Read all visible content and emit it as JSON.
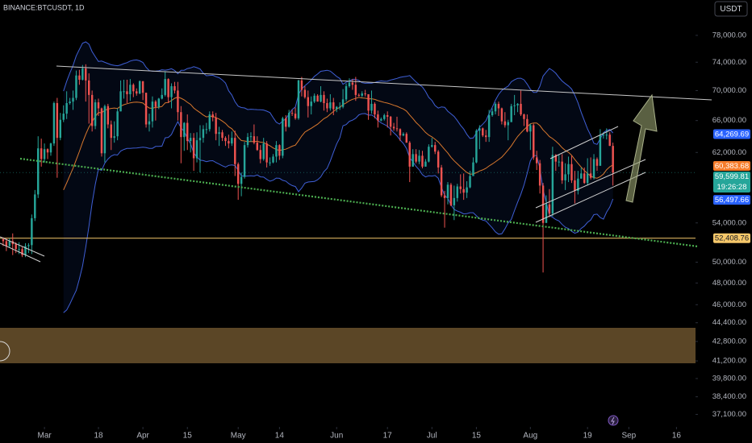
{
  "chart_data": {
    "type": "candlestick",
    "title": "BINANCE:BTCUSDT, 1D",
    "currency_button": "USDT",
    "log_scale": true,
    "grid": false,
    "up_color": "#26a69a",
    "down_color": "#ef5350",
    "ylim": [
      36200,
      83600
    ],
    "xlim": [
      -1,
      218
    ],
    "yticks": [
      {
        "value": 78000,
        "label": "78,000.00"
      },
      {
        "value": 74000,
        "label": "74,000.00"
      },
      {
        "value": 70000,
        "label": "70,000.00"
      },
      {
        "value": 66000,
        "label": "66,000.00"
      },
      {
        "value": 62000,
        "label": "62,000.00"
      },
      {
        "value": 54000,
        "label": "54,000.00"
      },
      {
        "value": 50000,
        "label": "50,000.00"
      },
      {
        "value": 48000,
        "label": "48,000.00"
      },
      {
        "value": 46000,
        "label": "46,000.00"
      },
      {
        "value": 44400,
        "label": "44,400.00"
      },
      {
        "value": 42800,
        "label": "42,800.00"
      },
      {
        "value": 41200,
        "label": "41,200.00"
      },
      {
        "value": 39800,
        "label": "39,800.00"
      },
      {
        "value": 38400,
        "label": "38,400.00"
      },
      {
        "value": 37100,
        "label": "37,100.00"
      }
    ],
    "xticks": [
      {
        "value": 13,
        "label": "Mar"
      },
      {
        "value": 30,
        "label": "18"
      },
      {
        "value": 44,
        "label": "Apr"
      },
      {
        "value": 58,
        "label": "15"
      },
      {
        "value": 74,
        "label": "May"
      },
      {
        "value": 87,
        "label": "14"
      },
      {
        "value": 105,
        "label": "Jun"
      },
      {
        "value": 121,
        "label": "17"
      },
      {
        "value": 135,
        "label": "Jul"
      },
      {
        "value": 149,
        "label": "15"
      },
      {
        "value": 166,
        "label": "Aug"
      },
      {
        "value": 184,
        "label": "19"
      },
      {
        "value": 197,
        "label": "Sep"
      },
      {
        "value": 212,
        "label": "16"
      }
    ],
    "price_labels": [
      {
        "value": 64269.69,
        "label": "64,269.69",
        "color": "#2962ff"
      },
      {
        "value": 60383.68,
        "label": "60,383.68",
        "color": "#f57c2a"
      },
      {
        "value": 59599.81,
        "label": "59,599.81",
        "color": "#26a69a",
        "countdown": "19:26:28"
      },
      {
        "value": 56497.66,
        "label": "56,497.66",
        "color": "#2962ff"
      },
      {
        "value": 52408.76,
        "label": "52,408.76",
        "color": "#f6c86a"
      }
    ],
    "open": [
      52300,
      52100,
      51600,
      52100,
      51800,
      51300,
      51300,
      50700,
      51600,
      51700,
      54500,
      57100,
      62500,
      61200,
      62400,
      62000,
      63100,
      68300,
      63800,
      66100,
      66900,
      68300,
      68500,
      69000,
      72100,
      71500,
      73100,
      71400,
      69400,
      65300,
      68400,
      67600,
      61900,
      67900,
      65500,
      63800,
      64000,
      67200,
      69900,
      69900,
      69500,
      70800,
      69900,
      69600,
      71300,
      69700,
      65500,
      65900,
      68500,
      67800,
      68900,
      69400,
      71600,
      69100,
      70600,
      70000,
      67100,
      63900,
      65700,
      63400,
      63800,
      61300,
      63500,
      63800,
      64900,
      64900,
      66800,
      66400,
      64300,
      64500,
      63800,
      63400,
      63100,
      63800,
      60600,
      58300,
      59100,
      62900,
      63900,
      64000,
      63200,
      62300,
      61200,
      63100,
      60800,
      60800,
      61500,
      62900,
      61600,
      66300,
      65200,
      67000,
      66900,
      66300,
      71400,
      70100,
      69100,
      67900,
      68500,
      69300,
      68500,
      69400,
      68300,
      67600,
      68400,
      67500,
      67800,
      67800,
      68800,
      70600,
      71100,
      70800,
      69400,
      69300,
      69600,
      69500,
      67300,
      68200,
      66800,
      66000,
      66200,
      66700,
      66500,
      65200,
      65000,
      64900,
      64100,
      64300,
      63200,
      60300,
      61800,
      60900,
      61600,
      60300,
      60900,
      62700,
      62900,
      62100,
      60200,
      57000,
      56700,
      58200,
      55900,
      56700,
      58000,
      57700,
      57300,
      57900,
      59200,
      60800,
      64700,
      65000,
      64100,
      63900,
      66700,
      67200,
      68200,
      67600,
      65900,
      65400,
      65800,
      67900,
      68000,
      68200,
      66800,
      66200,
      64600,
      65400,
      61400,
      60700,
      58100,
      54000,
      56000,
      55000,
      61700,
      60900,
      60900,
      58700,
      59400,
      60600,
      58700,
      57500,
      58900,
      59500,
      58400,
      59500,
      59000,
      61200,
      60400,
      64100,
      64200,
      64200,
      62800
    ],
    "high": [
      52500,
      52400,
      52400,
      52900,
      52000,
      52000,
      51500,
      51900,
      51900,
      54900,
      57600,
      64000,
      63700,
      63100,
      62500,
      63200,
      68500,
      69000,
      67000,
      68000,
      69900,
      69000,
      70000,
      72800,
      72900,
      73600,
      73700,
      72400,
      70000,
      68800,
      68900,
      67700,
      68100,
      68200,
      66000,
      65900,
      67600,
      71400,
      71500,
      71500,
      71600,
      71000,
      70300,
      71400,
      71300,
      69700,
      66900,
      69200,
      68700,
      69000,
      70300,
      72700,
      71700,
      71000,
      71200,
      71200,
      67900,
      65800,
      66800,
      64400,
      64400,
      64500,
      65400,
      65400,
      65700,
      67200,
      67200,
      67000,
      65200,
      64800,
      64000,
      64200,
      64600,
      64700,
      60800,
      59600,
      63300,
      64400,
      64500,
      65500,
      64000,
      62900,
      63800,
      63400,
      61400,
      61800,
      63400,
      63000,
      66500,
      66700,
      67400,
      67400,
      67700,
      71500,
      71900,
      70600,
      70000,
      69200,
      69600,
      69500,
      70600,
      69900,
      68900,
      69500,
      69000,
      67900,
      68400,
      70200,
      71000,
      71700,
      71600,
      71900,
      69600,
      69900,
      70100,
      69500,
      70000,
      68400,
      67300,
      66400,
      66900,
      67200,
      66600,
      65700,
      66500,
      65000,
      64500,
      64500,
      63400,
      62400,
      62400,
      62300,
      62200,
      61200,
      63000,
      63800,
      63300,
      62300,
      60500,
      57500,
      58500,
      58400,
      58100,
      58300,
      59400,
      59500,
      58600,
      59800,
      61400,
      64900,
      65400,
      65100,
      64800,
      67400,
      67600,
      68400,
      68500,
      67700,
      67100,
      66100,
      68200,
      69400,
      68300,
      70000,
      66900,
      66800,
      65600,
      65600,
      62200,
      61100,
      58400,
      57000,
      57700,
      62700,
      61800,
      61700,
      61800,
      60700,
      61500,
      61600,
      59800,
      59800,
      60200,
      60200,
      61300,
      61400,
      61800,
      61400,
      64900,
      64500,
      65000,
      64500,
      63200
    ],
    "low": [
      51600,
      51100,
      51400,
      50700,
      50900,
      50800,
      50500,
      50500,
      50900,
      50800,
      54200,
      56700,
      60300,
      60800,
      61200,
      61600,
      62800,
      59000,
      63500,
      65800,
      66200,
      68100,
      67400,
      68700,
      70800,
      71400,
      68500,
      65600,
      64600,
      64900,
      66600,
      61500,
      60800,
      65000,
      62300,
      63200,
      63500,
      67200,
      68900,
      68300,
      68600,
      69100,
      69300,
      69500,
      68700,
      65100,
      64600,
      65100,
      66000,
      67500,
      68800,
      69200,
      68300,
      67600,
      69600,
      66000,
      60700,
      62200,
      62300,
      62000,
      59800,
      60800,
      59600,
      63200,
      64300,
      64600,
      65900,
      63500,
      62800,
      63400,
      62800,
      62500,
      62800,
      59200,
      56500,
      56900,
      58900,
      62600,
      63300,
      63000,
      62200,
      60700,
      61000,
      60200,
      60400,
      60700,
      60800,
      61100,
      61300,
      64600,
      65100,
      66600,
      66100,
      66100,
      69200,
      68900,
      66400,
      66800,
      68300,
      68500,
      68400,
      67300,
      67100,
      67300,
      66700,
      67100,
      67400,
      67600,
      68500,
      70400,
      70100,
      68600,
      69200,
      69100,
      69200,
      66100,
      66900,
      66300,
      65100,
      65900,
      66000,
      65100,
      64100,
      64700,
      64600,
      63400,
      64000,
      63200,
      58500,
      60300,
      60700,
      60600,
      60100,
      60300,
      60800,
      62600,
      61800,
      59500,
      56800,
      53500,
      56000,
      55800,
      54300,
      56300,
      57200,
      56500,
      56700,
      57800,
      59200,
      60700,
      62400,
      63900,
      63300,
      63300,
      66500,
      66800,
      66600,
      65500,
      65100,
      63500,
      65800,
      66700,
      67100,
      66600,
      65300,
      64500,
      62300,
      61100,
      59900,
      57200,
      49000,
      54000,
      54600,
      54700,
      59800,
      60300,
      58300,
      57600,
      58500,
      58400,
      56100,
      57100,
      58900,
      58300,
      58100,
      58800,
      58800,
      59800,
      60400,
      63700,
      63600,
      62800,
      58100
    ],
    "close": [
      52100,
      51600,
      52100,
      51800,
      51300,
      51300,
      50700,
      51600,
      51700,
      54500,
      57100,
      62500,
      61200,
      62400,
      62000,
      63100,
      68300,
      63800,
      66100,
      66900,
      68300,
      68500,
      69000,
      72100,
      71500,
      73100,
      71400,
      69400,
      65300,
      68400,
      67600,
      61900,
      67900,
      65500,
      63800,
      64000,
      67200,
      69900,
      69900,
      69500,
      70800,
      69900,
      69600,
      71300,
      69700,
      65500,
      65900,
      68500,
      67800,
      68900,
      69400,
      71600,
      69100,
      70600,
      70000,
      67100,
      63900,
      65700,
      63400,
      63800,
      61300,
      63500,
      63800,
      64900,
      64900,
      66800,
      66400,
      64300,
      64500,
      63800,
      63400,
      63100,
      63800,
      60600,
      58300,
      59100,
      62900,
      63900,
      64000,
      63200,
      62300,
      61200,
      63100,
      60800,
      60800,
      61500,
      62900,
      61600,
      66300,
      65200,
      67000,
      66900,
      66300,
      71400,
      70100,
      69100,
      67900,
      68500,
      69300,
      68500,
      69400,
      68300,
      67600,
      68400,
      67500,
      67800,
      67800,
      68800,
      70600,
      71100,
      70800,
      69400,
      69300,
      69600,
      69500,
      67300,
      68200,
      66800,
      66000,
      66200,
      66700,
      66500,
      65200,
      65000,
      64900,
      64100,
      64300,
      63200,
      60300,
      61800,
      60900,
      61600,
      60300,
      60900,
      62700,
      62900,
      62100,
      60200,
      57000,
      56700,
      58200,
      55900,
      56700,
      58000,
      57700,
      57300,
      57900,
      59200,
      60800,
      64700,
      65000,
      64100,
      63900,
      66700,
      67200,
      68200,
      67600,
      65900,
      65400,
      65800,
      67900,
      68000,
      68200,
      66800,
      66200,
      64600,
      65400,
      61400,
      60700,
      58100,
      54000,
      56000,
      55000,
      61700,
      60900,
      60900,
      58700,
      59400,
      60600,
      58700,
      57500,
      58900,
      59500,
      58400,
      59500,
      59000,
      61200,
      60400,
      64100,
      64200,
      64200,
      62800,
      59600
    ]
  }
}
